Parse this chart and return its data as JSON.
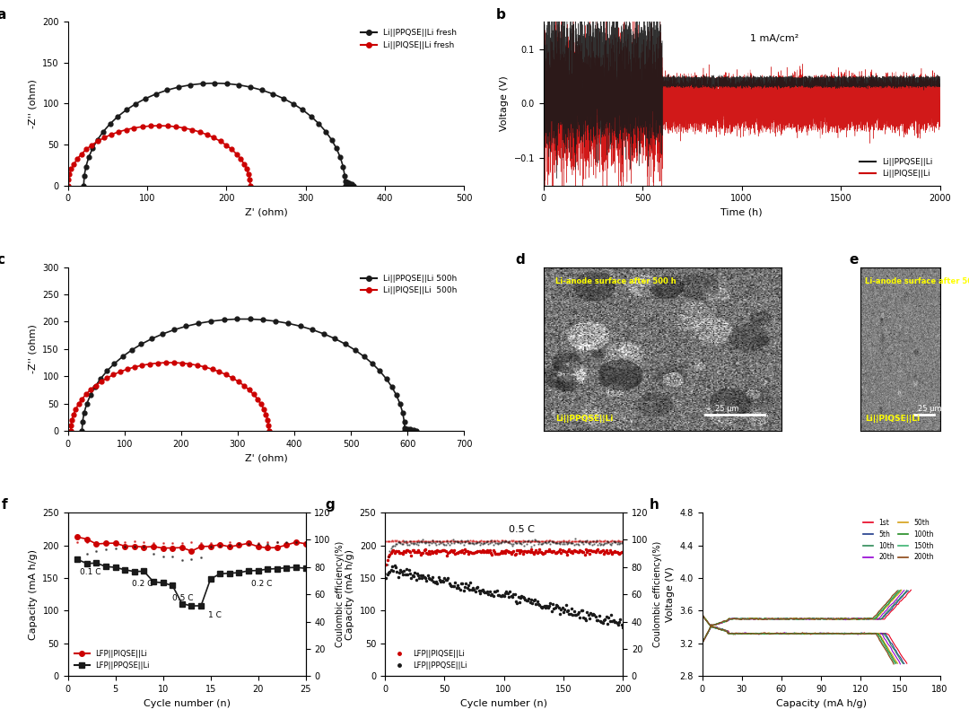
{
  "panel_a": {
    "xlabel": "Z' (ohm)",
    "ylabel": "-Z'' (ohm)",
    "xlim": [
      0,
      500
    ],
    "ylim": [
      0,
      200
    ],
    "xticks": [
      0,
      100,
      200,
      300,
      400,
      500
    ],
    "yticks": [
      0,
      50,
      100,
      150,
      200
    ],
    "black_label": "Li||PPQSE||Li fresh",
    "red_label": "Li||PIQSE||Li fresh"
  },
  "panel_b": {
    "xlabel": "Time (h)",
    "ylabel": "Voltage (V)",
    "xlim": [
      0,
      2000
    ],
    "ylim": [
      -0.15,
      0.15
    ],
    "xticks": [
      0,
      500,
      1000,
      1500,
      2000
    ],
    "yticks": [
      -0.1,
      0.0,
      0.1
    ],
    "annotation": "1 mA/cm²",
    "black_label": "Li||PPQSE||Li",
    "red_label": "Li||PIQSE||Li"
  },
  "panel_c": {
    "xlabel": "Z' (ohm)",
    "ylabel": "-Z'' (ohm)",
    "xlim": [
      0,
      700
    ],
    "ylim": [
      0,
      300
    ],
    "xticks": [
      0,
      100,
      200,
      300,
      400,
      500,
      600,
      700
    ],
    "yticks": [
      0,
      50,
      100,
      150,
      200,
      250,
      300
    ],
    "black_label": "Li||PPQSE||Li 500h",
    "red_label": "Li||PIQSE||Li  500h"
  },
  "panel_f": {
    "xlabel": "Cycle number (n)",
    "ylabel": "Capacity (mA h/g)",
    "ylabel2": "Coulombic efficiency(%)",
    "xlim": [
      0,
      25
    ],
    "ylim": [
      0,
      250
    ],
    "ylim2": [
      0,
      120
    ],
    "xticks": [
      0,
      5,
      10,
      15,
      20,
      25
    ],
    "yticks": [
      0,
      50,
      100,
      150,
      200,
      250
    ],
    "yticks2": [
      0,
      20,
      40,
      60,
      80,
      100,
      120
    ],
    "red_label": "LFP||PIQSE||Li",
    "black_label": "LFP||PPQSE||Li"
  },
  "panel_g": {
    "xlabel": "Cycle number (n)",
    "ylabel": "Capacity (mA h/g)",
    "ylabel2": "Coulombic efficiency(%)",
    "xlim": [
      0,
      200
    ],
    "ylim": [
      0,
      250
    ],
    "ylim2": [
      0,
      120
    ],
    "xticks": [
      0,
      50,
      100,
      150,
      200
    ],
    "yticks": [
      0,
      50,
      100,
      150,
      200,
      250
    ],
    "yticks2": [
      0,
      20,
      40,
      60,
      80,
      100,
      120
    ],
    "annotation": "0.5 C",
    "red_label": "LFP||PIQSE||Li",
    "black_label": "LFP||PPQSE||Li"
  },
  "panel_h": {
    "xlabel": "Capacity (mA h/g)",
    "ylabel": "Voltage (V)",
    "xlim": [
      0,
      180
    ],
    "ylim": [
      2.8,
      4.8
    ],
    "xticks": [
      0,
      30,
      60,
      90,
      120,
      150,
      180
    ],
    "yticks": [
      2.8,
      3.2,
      3.6,
      4.0,
      4.4,
      4.8
    ]
  },
  "cycle_data_h": [
    [
      "1st",
      155,
      "#e8001f"
    ],
    [
      "5th",
      153,
      "#1e3a8a"
    ],
    [
      "10th",
      152,
      "#2e8b57"
    ],
    [
      "20th",
      150,
      "#9400d3"
    ],
    [
      "50th",
      148,
      "#d4a017"
    ],
    [
      "100th",
      147,
      "#228b22"
    ],
    [
      "150th",
      146,
      "#3cb371"
    ],
    [
      "200th",
      145,
      "#8b4513"
    ]
  ],
  "colors": {
    "black": "#1a1a1a",
    "red": "#cc0000"
  }
}
